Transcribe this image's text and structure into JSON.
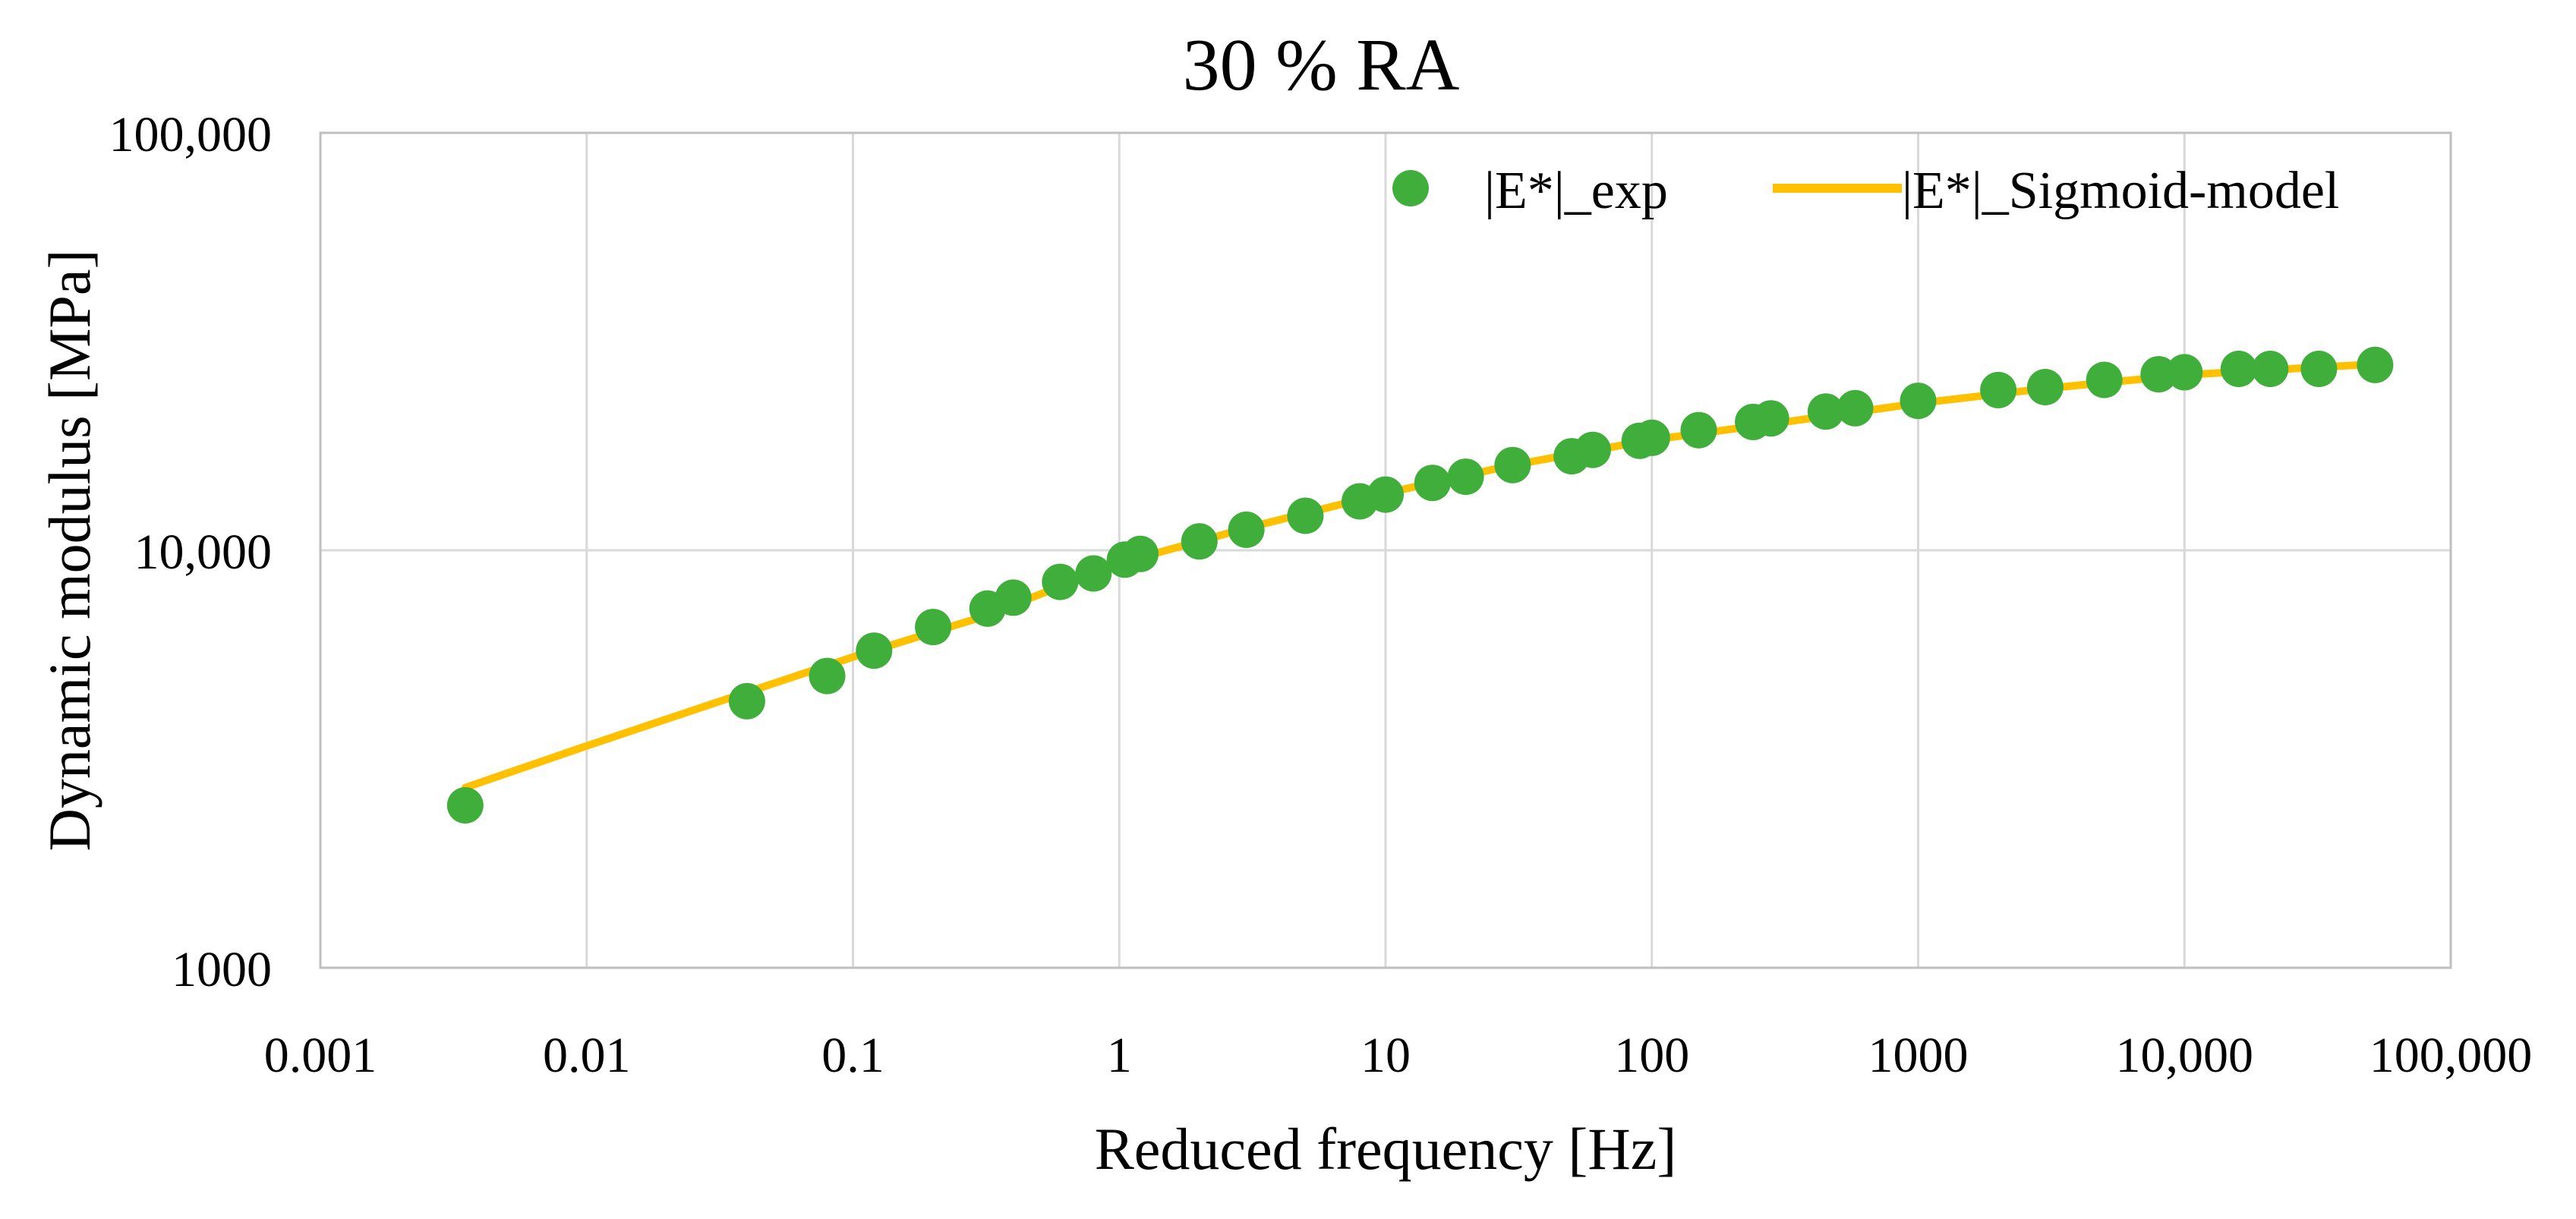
{
  "chart_data": {
    "type": "scatter",
    "title": "30 % RA",
    "xlabel": "Reduced frequency [Hz]",
    "ylabel": "Dynamic modulus [MPa]",
    "x_scale": "log",
    "y_scale": "log",
    "xlim": [
      0.001,
      100000
    ],
    "ylim": [
      1000,
      100000
    ],
    "x_ticks": [
      0.001,
      0.01,
      0.1,
      1,
      10,
      100,
      1000,
      10000,
      100000
    ],
    "x_tick_labels": [
      "0.001",
      "0.01",
      "0.1",
      "1",
      "10",
      "100",
      "1000",
      "10,000",
      "100,000"
    ],
    "y_ticks": [
      1000,
      10000,
      100000
    ],
    "y_tick_labels": [
      "1000",
      "10,000",
      "100,000"
    ],
    "grid": true,
    "legend_position": "top-right",
    "colors": {
      "exp": "#3fae3a",
      "model": "#ffc000",
      "grid": "#d9d9d9",
      "axis": "#bfbfbf"
    },
    "series": [
      {
        "name": "|E*|_exp",
        "kind": "scatter",
        "points": [
          [
            0.0035,
            2450
          ],
          [
            0.04,
            4350
          ],
          [
            0.08,
            5000
          ],
          [
            0.12,
            5750
          ],
          [
            0.2,
            6550
          ],
          [
            0.32,
            7250
          ],
          [
            0.4,
            7700
          ],
          [
            0.6,
            8400
          ],
          [
            0.8,
            8800
          ],
          [
            1.05,
            9500
          ],
          [
            1.2,
            9800
          ],
          [
            2.0,
            10500
          ],
          [
            3.0,
            11200
          ],
          [
            5.0,
            12100
          ],
          [
            8.0,
            13100
          ],
          [
            10.0,
            13600
          ],
          [
            15.0,
            14500
          ],
          [
            20.0,
            15000
          ],
          [
            30.0,
            16000
          ],
          [
            50.0,
            16800
          ],
          [
            60.0,
            17400
          ],
          [
            90.0,
            18300
          ],
          [
            100.0,
            18600
          ],
          [
            150.0,
            19400
          ],
          [
            240.0,
            20300
          ],
          [
            280.0,
            20700
          ],
          [
            450.0,
            21500
          ],
          [
            580.0,
            21900
          ],
          [
            1000.0,
            22800
          ],
          [
            2000.0,
            24200
          ],
          [
            3000.0,
            24600
          ],
          [
            5000.0,
            25600
          ],
          [
            8000.0,
            26400
          ],
          [
            10000.0,
            26700
          ],
          [
            16000.0,
            27200
          ],
          [
            21000.0,
            27200
          ],
          [
            32000.0,
            27200
          ],
          [
            52000.0,
            27800
          ]
        ]
      },
      {
        "name": "|E*|_Sigmoid-model",
        "kind": "line",
        "points": [
          [
            0.0035,
            2700
          ],
          [
            0.01,
            3400
          ],
          [
            0.03,
            4300
          ],
          [
            0.1,
            5550
          ],
          [
            0.3,
            6900
          ],
          [
            1.0,
            9300
          ],
          [
            3.0,
            11300
          ],
          [
            10.0,
            13700
          ],
          [
            30.0,
            16000
          ],
          [
            100.0,
            18400
          ],
          [
            300.0,
            20200
          ],
          [
            1000.0,
            22500
          ],
          [
            3000.0,
            24400
          ],
          [
            10000.0,
            26300
          ],
          [
            30000.0,
            27400
          ],
          [
            52000.0,
            27900
          ]
        ]
      }
    ]
  }
}
